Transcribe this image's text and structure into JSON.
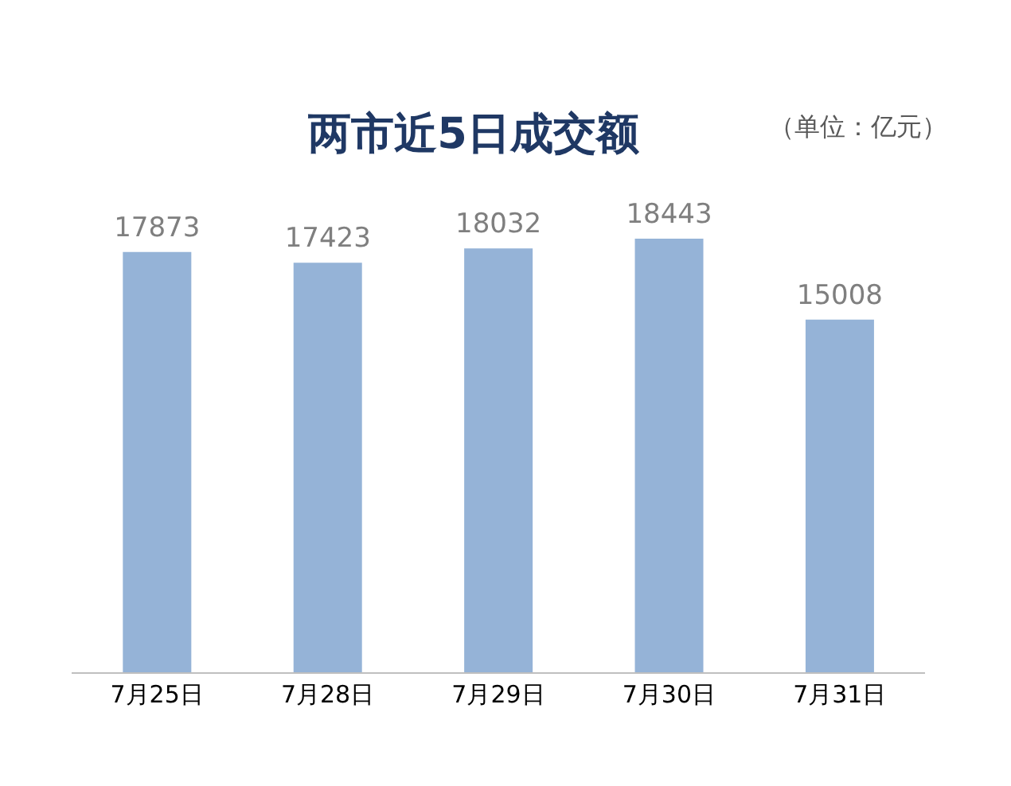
{
  "chart_data": {
    "type": "bar",
    "title": "两市近5日成交额",
    "annotations": [
      "（单位：亿元）"
    ],
    "categories": [
      "7月25日",
      "7月28日",
      "7月29日",
      "7月30日",
      "7月31日"
    ],
    "values": [
      17873,
      17423,
      18032,
      18443,
      15008
    ],
    "color": "#95b3d7",
    "data_labels": true
  }
}
